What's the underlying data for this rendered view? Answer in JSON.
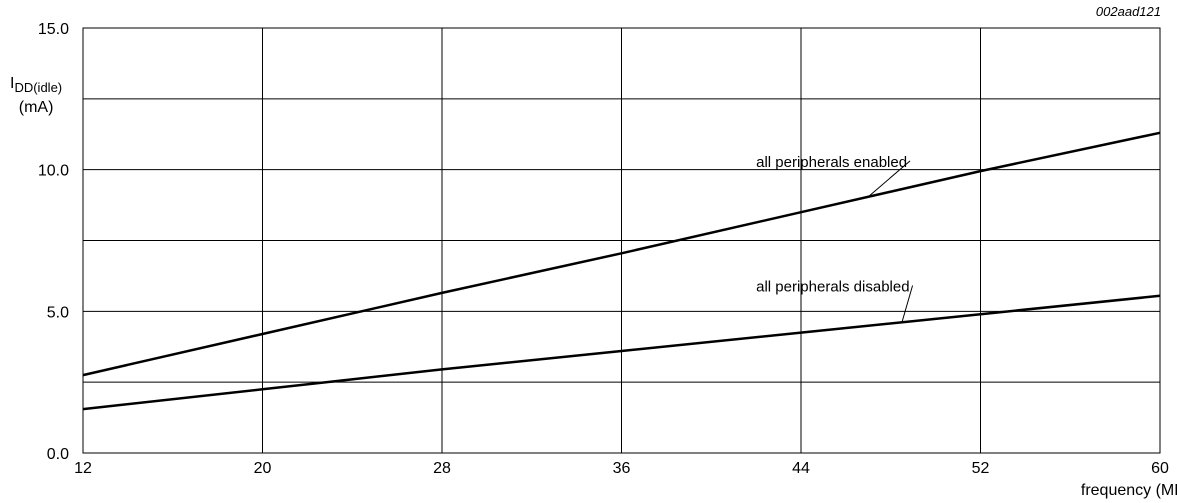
{
  "chart_data": {
    "type": "line",
    "figure_id": "002aad121",
    "ylabel_main": "I",
    "ylabel_sub": "DD(idle)",
    "ylabel_unit": "(mA)",
    "xlabel": "frequency (MHz)",
    "xlim": [
      12,
      60
    ],
    "ylim": [
      0,
      15
    ],
    "x_ticks": [
      12,
      20,
      28,
      36,
      44,
      52,
      60
    ],
    "x_tick_labels": [
      "12",
      "20",
      "28",
      "36",
      "44",
      "52",
      "60"
    ],
    "y_ticks": [
      0,
      5,
      10,
      15
    ],
    "y_tick_labels": [
      "0.0",
      "5.0",
      "10.0",
      "15.0"
    ],
    "y_grid": [
      0,
      2.5,
      5,
      7.5,
      10,
      12.5,
      15
    ],
    "grid": true,
    "series": [
      {
        "name": "all peripherals enabled",
        "x": [
          12,
          20,
          28,
          36,
          44,
          52,
          60
        ],
        "y": [
          2.75,
          4.2,
          5.65,
          7.05,
          8.5,
          9.95,
          11.3
        ]
      },
      {
        "name": "all peripherals disabled",
        "x": [
          12,
          20,
          28,
          36,
          44,
          52,
          60
        ],
        "y": [
          1.55,
          2.25,
          2.95,
          3.6,
          4.25,
          4.9,
          5.55
        ]
      }
    ],
    "annotations": [
      {
        "text": "all peripherals enabled",
        "series": 0,
        "label_x": 42,
        "label_y": 10.1,
        "point_x": 47
      },
      {
        "text": "all peripherals disabled",
        "series": 1,
        "label_x": 42,
        "label_y": 5.7,
        "point_x": 48.5
      }
    ]
  }
}
